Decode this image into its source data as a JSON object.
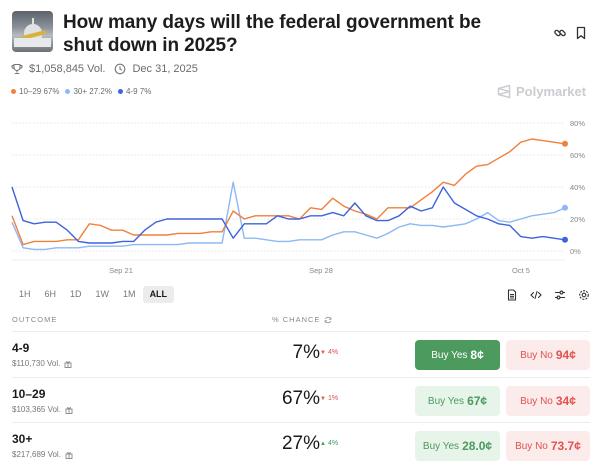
{
  "market": {
    "title": "How many days will the federal government be shut down in 2025?",
    "volume": "$1,058,845 Vol.",
    "end_date": "Dec 31, 2025",
    "brand": "Polymarket"
  },
  "legend": [
    {
      "label": "10–29 67%",
      "color": "#f0803c"
    },
    {
      "label": "30+ 27.2%",
      "color": "#8cb8f6"
    },
    {
      "label": "4-9 7%",
      "color": "#3d63dd"
    }
  ],
  "range_tabs": [
    "1H",
    "6H",
    "1D",
    "1W",
    "1M",
    "ALL"
  ],
  "active_range": "ALL",
  "table": {
    "col_outcome": "OUTCOME",
    "col_chance": "% CHANCE",
    "rows": [
      {
        "name": "4-9",
        "volume": "$110,730 Vol.",
        "chance": "7%",
        "delta": "4%",
        "delta_dir": "down",
        "yes_label": "Buy Yes",
        "yes_price": "8¢",
        "no_label": "Buy No",
        "no_price": "94¢",
        "yes_active": true
      },
      {
        "name": "10–29",
        "volume": "$103,365 Vol.",
        "chance": "67%",
        "delta": "1%",
        "delta_dir": "down",
        "yes_label": "Buy Yes",
        "yes_price": "67¢",
        "no_label": "Buy No",
        "no_price": "34¢",
        "yes_active": false
      },
      {
        "name": "30+",
        "volume": "$217,689 Vol.",
        "chance": "27%",
        "delta": "4%",
        "delta_dir": "up",
        "yes_label": "Buy Yes",
        "yes_price": "28.0¢",
        "no_label": "Buy No",
        "no_price": "73.7¢",
        "yes_active": false
      }
    ]
  },
  "chart_data": {
    "type": "line",
    "title": "",
    "xlabel": "",
    "ylabel": "",
    "ylim": [
      0,
      80
    ],
    "y_ticks": [
      "80%",
      "60%",
      "40%",
      "20%",
      "0%"
    ],
    "x_ticks": [
      "Sep 21",
      "Sep 28",
      "Oct 5"
    ],
    "grid": true,
    "legend_position": "top-left",
    "x": [
      0,
      2,
      4,
      6,
      8,
      10,
      12,
      14,
      16,
      18,
      20,
      22,
      24,
      26,
      28,
      30,
      32,
      34,
      36,
      38,
      40,
      42,
      44,
      46,
      48,
      50,
      52,
      54,
      56,
      58,
      60,
      62,
      64,
      66,
      68,
      70,
      72,
      74,
      76,
      78,
      80,
      82,
      84,
      86,
      88,
      90,
      92,
      94,
      96,
      98,
      100
    ],
    "series": [
      {
        "name": "10–29",
        "color": "#f0803c",
        "values": [
          22,
          4,
          6,
          6,
          6,
          7,
          7,
          17,
          16,
          13,
          13,
          10,
          10,
          10,
          10,
          11,
          11,
          11,
          12,
          12,
          25,
          20,
          22,
          22,
          22,
          22,
          20,
          27,
          26,
          33,
          28,
          25,
          23,
          20,
          27,
          27,
          27,
          32,
          37,
          43,
          41,
          48,
          53,
          54,
          58,
          62,
          68,
          70,
          69,
          68,
          67
        ]
      },
      {
        "name": "30+",
        "color": "#8cb8f6",
        "values": [
          18,
          2,
          1,
          1,
          2,
          2,
          2,
          3,
          3,
          3,
          3,
          4,
          4,
          4,
          4,
          4,
          5,
          5,
          5,
          5,
          43,
          8,
          8,
          7,
          6,
          6,
          7,
          7,
          7,
          10,
          12,
          12,
          10,
          8,
          11,
          15,
          17,
          16,
          16,
          15,
          16,
          17,
          20,
          24,
          19,
          18,
          20,
          22,
          23,
          24,
          27
        ]
      },
      {
        "name": "4-9",
        "color": "#3d63dd",
        "values": [
          40,
          19,
          17,
          18,
          18,
          13,
          6,
          5,
          5,
          5,
          6,
          6,
          13,
          18,
          20,
          20,
          20,
          20,
          20,
          20,
          8,
          17,
          17,
          17,
          22,
          20,
          20,
          22,
          22,
          24,
          22,
          30,
          22,
          19,
          19,
          22,
          28,
          25,
          27,
          40,
          30,
          26,
          22,
          20,
          17,
          16,
          9,
          8,
          9,
          8,
          7
        ]
      }
    ]
  }
}
